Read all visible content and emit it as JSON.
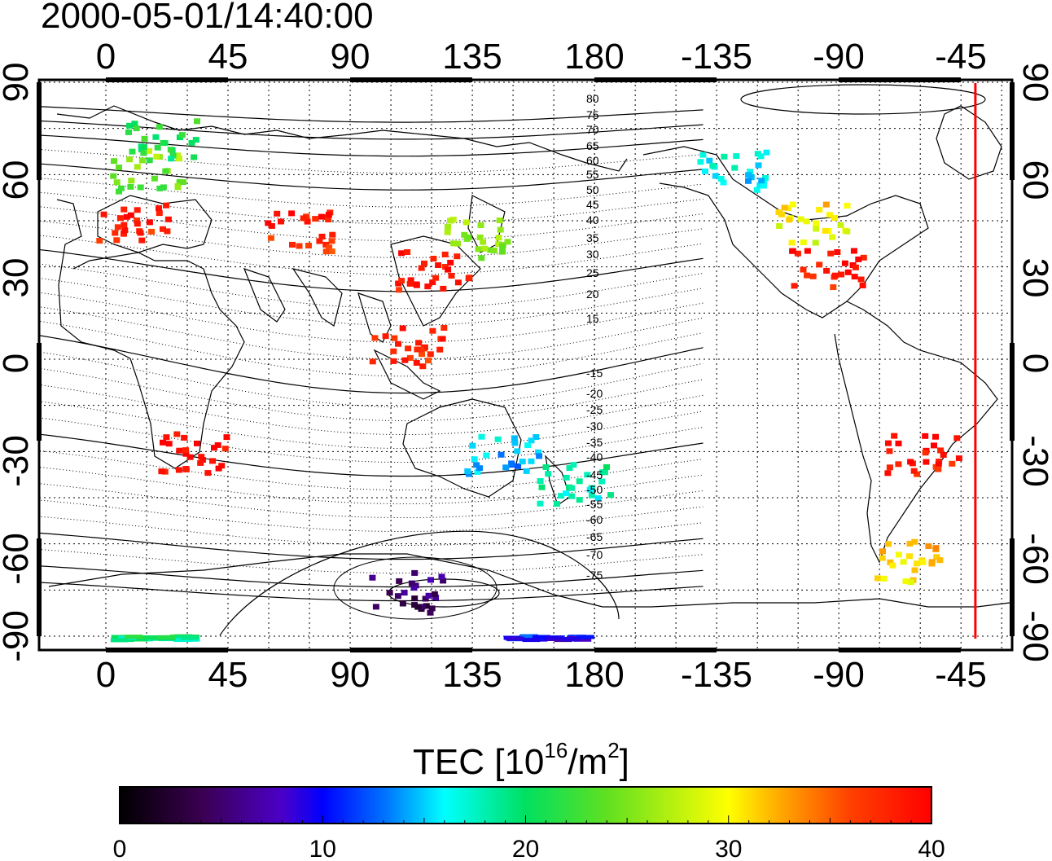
{
  "title": "2000-05-01/14:40:00",
  "colorbar": {
    "label_main": "TEC  [10",
    "label_sup1": "16",
    "label_mid": "/m",
    "label_sup2": "2",
    "label_end": "]",
    "ticks": [
      "0",
      "10",
      "20",
      "30",
      "40"
    ],
    "range": [
      0,
      40
    ],
    "stops": [
      {
        "t": 0.0,
        "color": "#000000"
      },
      {
        "t": 0.1,
        "color": "#3a0050"
      },
      {
        "t": 0.2,
        "color": "#4b00c8"
      },
      {
        "t": 0.25,
        "color": "#0000ff"
      },
      {
        "t": 0.33,
        "color": "#0078ff"
      },
      {
        "t": 0.4,
        "color": "#00ffff"
      },
      {
        "t": 0.5,
        "color": "#00e060"
      },
      {
        "t": 0.6,
        "color": "#60e020"
      },
      {
        "t": 0.75,
        "color": "#ffff00"
      },
      {
        "t": 0.82,
        "color": "#ffa000"
      },
      {
        "t": 0.9,
        "color": "#ff4000"
      },
      {
        "t": 1.0,
        "color": "#ff0000"
      }
    ]
  },
  "axes": {
    "lon_ticks_bottom": [
      "0",
      "45",
      "90",
      "135",
      "180",
      "-135",
      "-90",
      "-45"
    ],
    "lon_ticks_top": [
      "0",
      "45",
      "90",
      "135",
      "180",
      "-135",
      "-90",
      "-45"
    ],
    "lat_ticks_left": [
      "90",
      "60",
      "30",
      "0",
      "-30",
      "-60",
      "-90"
    ],
    "lat_ticks_right": [
      "90",
      "60",
      "30",
      "0",
      "-30",
      "-60",
      "-90"
    ],
    "lat_range": [
      -90,
      90
    ],
    "lon_center": 155
  },
  "contour_labels": [
    "80",
    "75",
    "70",
    "65",
    "60",
    "55",
    "50",
    "45",
    "40",
    "35",
    "30",
    "25",
    "20",
    "15",
    "-15",
    "-20",
    "-25",
    "-30",
    "-35",
    "-40",
    "-45",
    "-50",
    "-55",
    "-60",
    "-65",
    "-70",
    "-75"
  ],
  "terminator_color": "#ff0000",
  "chart_data": {
    "type": "heatmap",
    "title": "2000-05-01/14:40:00",
    "xlabel": "",
    "ylabel": "",
    "colorbar_label": "TEC [10^16/m^2]",
    "value_range": [
      0,
      40
    ],
    "grid": true,
    "regions": [
      {
        "lon": 10,
        "lat": 45,
        "tec": 38
      },
      {
        "lon": 15,
        "lat": 62,
        "tec": 25
      },
      {
        "lon": 20,
        "lat": 72,
        "tec": 21
      },
      {
        "lon": 30,
        "lat": -30,
        "tec": 39
      },
      {
        "lon": 70,
        "lat": 42,
        "tec": 38
      },
      {
        "lon": 120,
        "lat": 30,
        "tec": 39
      },
      {
        "lon": 135,
        "lat": 40,
        "tec": 26
      },
      {
        "lon": 110,
        "lat": 5,
        "tec": 38
      },
      {
        "lon": 145,
        "lat": -30,
        "tec": 15
      },
      {
        "lon": 172,
        "lat": -40,
        "tec": 18
      },
      {
        "lon": -100,
        "lat": 45,
        "tec": 30
      },
      {
        "lon": -95,
        "lat": 30,
        "tec": 39
      },
      {
        "lon": -130,
        "lat": 62,
        "tec": 16
      },
      {
        "lon": -60,
        "lat": -30,
        "tec": 39
      },
      {
        "lon": -65,
        "lat": -65,
        "tec": 31
      },
      {
        "lon": 110,
        "lat": -75,
        "tec": 5
      },
      {
        "lon": 160,
        "lat": -90,
        "tec": 10
      },
      {
        "lon": 15,
        "lat": -90,
        "tec": 19
      }
    ],
    "terminator_lon": -40
  }
}
